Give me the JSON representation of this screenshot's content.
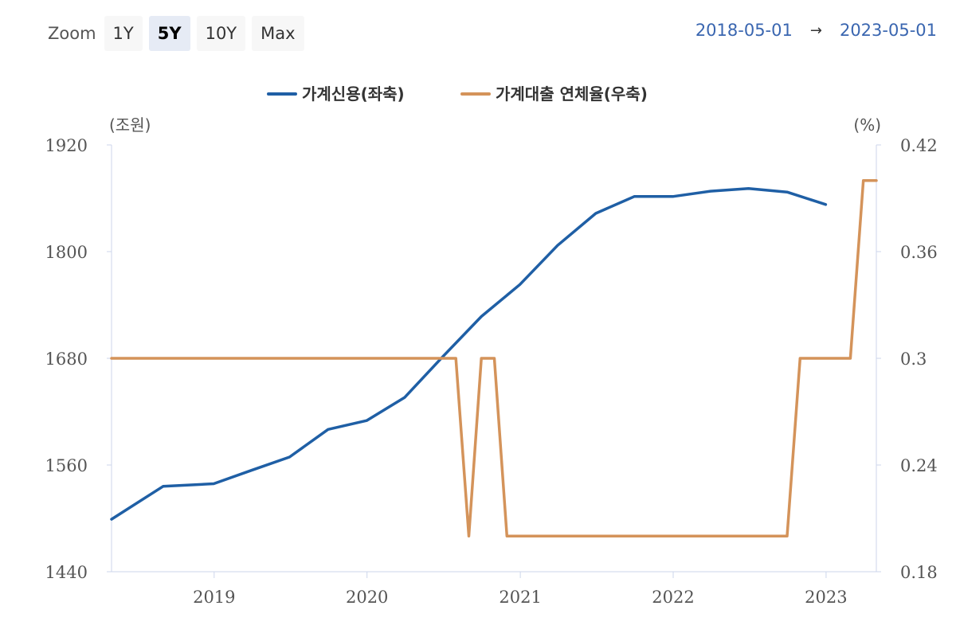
{
  "toolbar": {
    "zoom_label": "Zoom",
    "buttons": [
      "1Y",
      "5Y",
      "10Y",
      "Max"
    ],
    "active": "5Y",
    "date_from": "2018-05-01",
    "arrow": "→",
    "date_to": "2023-05-01"
  },
  "colors": {
    "series_left": "#1f5fa5",
    "series_right": "#d4935a",
    "axis": "#ccd6eb"
  },
  "chart_data": {
    "type": "line",
    "left_axis": {
      "unit": "(조원)",
      "ticks": [
        1440,
        1560,
        1680,
        1800,
        1920
      ],
      "range": [
        1440,
        1920
      ]
    },
    "right_axis": {
      "unit": "(%)",
      "ticks": [
        "0.18",
        "0.24",
        "0.3",
        "0.36",
        "0.42"
      ],
      "range": [
        0.18,
        0.42
      ]
    },
    "x_ticks": [
      "2019",
      "2020",
      "2021",
      "2022",
      "2023"
    ],
    "x_range": [
      "2018-05-01",
      "2023-05-01"
    ],
    "legend": [
      "가계신용(좌축)",
      "가계대출 연체율(우축)"
    ],
    "series": [
      {
        "name": "가계신용(좌축)",
        "axis": "left",
        "points": [
          [
            "2018-05-01",
            1499
          ],
          [
            "2018-09-01",
            1536
          ],
          [
            "2018-12-31",
            1539
          ],
          [
            "2019-03-31",
            1554
          ],
          [
            "2019-06-30",
            1569
          ],
          [
            "2019-09-30",
            1600
          ],
          [
            "2019-12-31",
            1610
          ],
          [
            "2020-03-31",
            1636
          ],
          [
            "2020-06-30",
            1682
          ],
          [
            "2020-09-30",
            1727
          ],
          [
            "2020-12-31",
            1763
          ],
          [
            "2021-03-31",
            1807
          ],
          [
            "2021-06-30",
            1843
          ],
          [
            "2021-09-30",
            1862
          ],
          [
            "2021-12-31",
            1862
          ],
          [
            "2022-03-31",
            1868
          ],
          [
            "2022-06-30",
            1871
          ],
          [
            "2022-09-30",
            1867
          ],
          [
            "2022-12-31",
            1853
          ]
        ]
      },
      {
        "name": "가계대출 연체율(우축)",
        "axis": "right",
        "points": [
          [
            "2018-05-01",
            0.3
          ],
          [
            "2020-07-31",
            0.3
          ],
          [
            "2020-08-31",
            0.2
          ],
          [
            "2020-09-30",
            0.3
          ],
          [
            "2020-10-31",
            0.3
          ],
          [
            "2020-11-30",
            0.2
          ],
          [
            "2022-09-30",
            0.2
          ],
          [
            "2022-10-31",
            0.3
          ],
          [
            "2023-02-28",
            0.3
          ],
          [
            "2023-03-31",
            0.4
          ],
          [
            "2023-05-01",
            0.4
          ]
        ]
      }
    ]
  }
}
